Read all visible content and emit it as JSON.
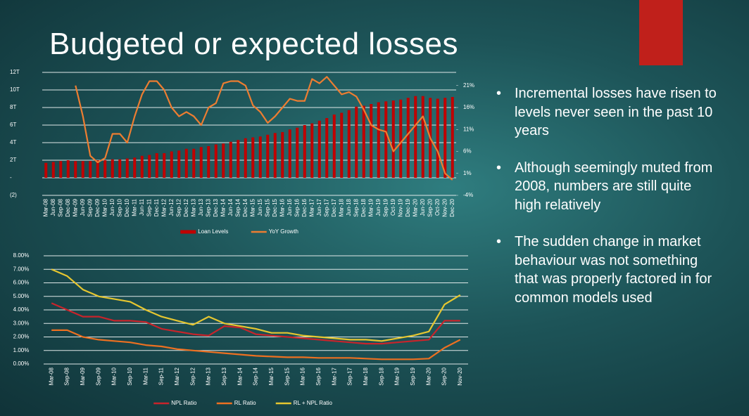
{
  "title": "Budgeted or expected losses",
  "bullets": [
    "Incremental losses have risen to levels never seen in the past 10 years",
    "Although seemingly muted from  2008, numbers are still quite high relatively",
    "The sudden change in market behaviour was not something that was properly factored in for common models used"
  ],
  "chart_data": [
    {
      "type": "bar_line",
      "categories": [
        "Mar-08",
        "Jun-08",
        "Sep-08",
        "Dec-08",
        "Mar-09",
        "Jun-09",
        "Sep-09",
        "Dec-09",
        "Mar-10",
        "Jun-10",
        "Sep-10",
        "Dec-10",
        "Mar-11",
        "Jun-11",
        "Sep-11",
        "Dec-11",
        "Mar-12",
        "Jun-12",
        "Sep-12",
        "Dec-12",
        "Mar-13",
        "Jun-13",
        "Sep-13",
        "Dec-13",
        "Mar-14",
        "Jun-14",
        "Sep-14",
        "Dec-14",
        "Mar-15",
        "Jun-15",
        "Sep-15",
        "Dec-15",
        "Mar-16",
        "Jun-16",
        "Sep-16",
        "Dec-16",
        "Mar-17",
        "Jun-17",
        "Sep-17",
        "Dec-17",
        "Mar-18",
        "Jun-18",
        "Sep-18",
        "Dec-18",
        "Mar-19",
        "Jun-19",
        "Sep-19",
        "Oct-19",
        "Nov-19",
        "Dec-19",
        "Mar-20",
        "Jun-20",
        "Sep-20",
        "Oct-20",
        "Nov-20",
        "Dec-20"
      ],
      "series": [
        {
          "name": "Loan Levels",
          "color": "#c00000",
          "kind": "bar",
          "values": [
            1.7,
            1.8,
            1.9,
            2.0,
            1.9,
            1.9,
            1.9,
            2.0,
            2.0,
            2.1,
            2.1,
            2.2,
            2.3,
            2.5,
            2.6,
            2.8,
            2.8,
            3.0,
            3.1,
            3.3,
            3.3,
            3.5,
            3.6,
            3.8,
            3.9,
            4.1,
            4.3,
            4.5,
            4.6,
            4.7,
            4.9,
            5.1,
            5.2,
            5.5,
            5.7,
            6.0,
            6.2,
            6.5,
            6.8,
            7.2,
            7.4,
            7.7,
            8.1,
            8.2,
            8.4,
            8.6,
            8.7,
            8.8,
            8.9,
            9.1,
            9.3,
            9.3,
            9.1,
            9.0,
            9.1,
            9.2
          ]
        },
        {
          "name": "YoY Growth",
          "color": "#ed7d31",
          "kind": "line",
          "axis": "y2",
          "values": [
            null,
            null,
            null,
            null,
            21,
            14,
            5,
            3.5,
            4.5,
            10,
            10,
            8,
            14,
            19,
            22,
            22,
            20,
            16,
            14,
            15,
            14,
            12,
            16,
            17,
            21.5,
            22,
            22,
            21,
            16.5,
            15,
            12.5,
            14,
            16,
            18,
            17.5,
            17.5,
            22.5,
            21.5,
            23,
            21,
            19,
            19.5,
            18.5,
            15.5,
            12,
            11,
            10.5,
            6,
            8,
            10,
            12,
            14,
            9,
            6,
            1,
            -0.5
          ]
        }
      ],
      "ylim": [
        -2,
        12
      ],
      "yticks": [
        {
          "value": -2,
          "label": "(2)"
        },
        {
          "value": 0,
          "label": "-"
        },
        {
          "value": 2,
          "label": "2T"
        },
        {
          "value": 4,
          "label": "4T"
        },
        {
          "value": 6,
          "label": "6T"
        },
        {
          "value": 8,
          "label": "8T"
        },
        {
          "value": 10,
          "label": "10T"
        },
        {
          "value": 12,
          "label": "12T"
        }
      ],
      "y2lim": [
        -4,
        24
      ],
      "y2ticks": [
        {
          "value": -4,
          "label": "-4%"
        },
        {
          "value": 1,
          "label": "1%"
        },
        {
          "value": 6,
          "label": "6%"
        },
        {
          "value": 11,
          "label": "11%"
        },
        {
          "value": 16,
          "label": "16%"
        },
        {
          "value": 21,
          "label": "21%"
        }
      ],
      "grid": true
    },
    {
      "type": "line",
      "categories": [
        "Mar-08",
        "Sep-08",
        "Mar-09",
        "Sep-09",
        "Mar-10",
        "Sep-10",
        "Mar-11",
        "Sep-11",
        "Mar-12",
        "Sep-12",
        "Mar-13",
        "Sep-13",
        "Mar-14",
        "Sep-14",
        "Mar-15",
        "Sep-15",
        "Mar-16",
        "Sep-16",
        "Mar-17",
        "Sep-17",
        "Mar-18",
        "Sep-18",
        "Mar-19",
        "Sep-19",
        "Mar-20",
        "Sep-20",
        "Nov-20"
      ],
      "series": [
        {
          "name": "NPL Ratio",
          "color": "#c8242b",
          "values": [
            4.5,
            4.0,
            3.5,
            3.5,
            3.2,
            3.2,
            3.1,
            2.6,
            2.4,
            2.2,
            2.1,
            2.8,
            2.7,
            2.2,
            2.1,
            2.0,
            1.9,
            1.8,
            1.7,
            1.6,
            1.5,
            1.5,
            1.6,
            1.7,
            1.8,
            3.2,
            3.2
          ]
        },
        {
          "name": "RL Ratio",
          "color": "#ed7021",
          "values": [
            2.5,
            2.5,
            2.0,
            1.8,
            1.7,
            1.6,
            1.4,
            1.3,
            1.1,
            1.0,
            0.9,
            0.8,
            0.7,
            0.6,
            0.55,
            0.5,
            0.5,
            0.45,
            0.45,
            0.45,
            0.4,
            0.35,
            0.35,
            0.35,
            0.4,
            1.2,
            1.8
          ]
        },
        {
          "name": "RL + NPL Ratio",
          "color": "#e6c630",
          "values": [
            7.0,
            6.5,
            5.5,
            5.0,
            4.8,
            4.6,
            4.0,
            3.5,
            3.2,
            2.9,
            3.5,
            3.0,
            2.8,
            2.6,
            2.3,
            2.3,
            2.1,
            2.0,
            1.9,
            1.8,
            1.8,
            1.7,
            1.9,
            2.1,
            2.4,
            4.4,
            5.1
          ]
        }
      ],
      "ylim": [
        0,
        8
      ],
      "yticks": [
        {
          "value": 0,
          "label": "0.00%"
        },
        {
          "value": 1,
          "label": "1.00%"
        },
        {
          "value": 2,
          "label": "2.00%"
        },
        {
          "value": 3,
          "label": "3.00%"
        },
        {
          "value": 4,
          "label": "4.00%"
        },
        {
          "value": 5,
          "label": "5.00%"
        },
        {
          "value": 6,
          "label": "6.00%"
        },
        {
          "value": 7,
          "label": "7.00%"
        },
        {
          "value": 8,
          "label": "8.00%"
        }
      ],
      "grid": true
    }
  ]
}
